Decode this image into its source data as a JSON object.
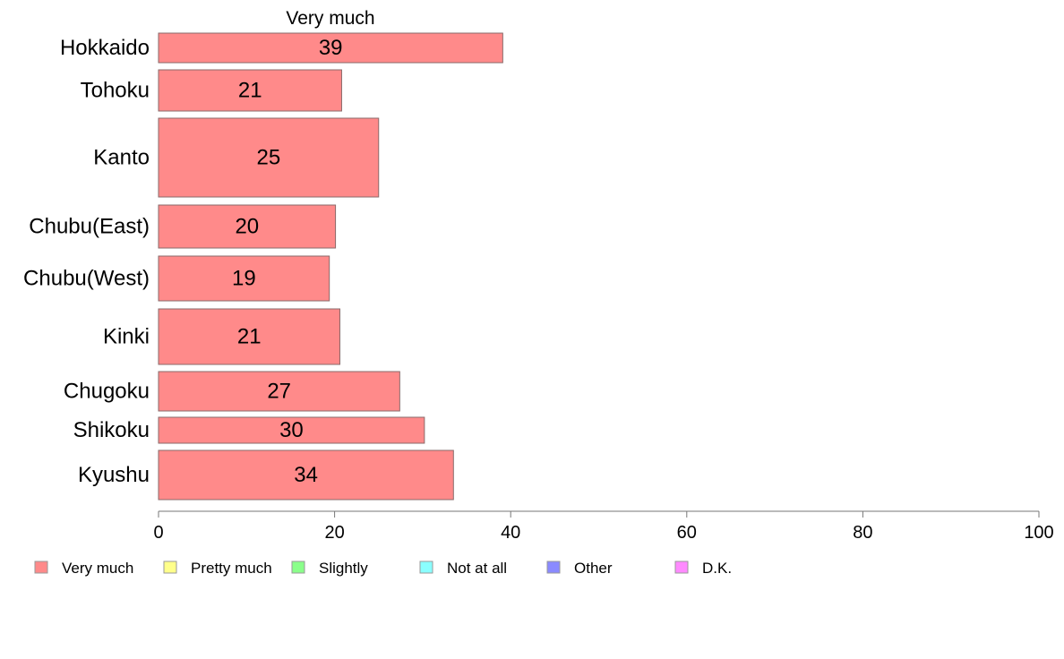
{
  "chart_data": {
    "type": "bar",
    "orientation": "horizontal",
    "title": "Very much",
    "xlim": [
      0,
      100
    ],
    "x_ticks": [
      0,
      20,
      40,
      60,
      80,
      100
    ],
    "grid": false,
    "legend_position": "bottom",
    "categories": [
      "Hokkaido",
      "Tohoku",
      "Kanto",
      "Chubu(East)",
      "Chubu(West)",
      "Kinki",
      "Chugoku",
      "Shikoku",
      "Kyushu"
    ],
    "series": [
      {
        "name": "Very much",
        "color": "#ff8a8a",
        "values": [
          39.1,
          20.8,
          25.0,
          20.1,
          19.4,
          20.6,
          27.4,
          30.2,
          33.5
        ],
        "labels": [
          "39",
          "21",
          "25",
          "20",
          "19",
          "21",
          "27",
          "30",
          "34"
        ]
      }
    ],
    "legend": [
      {
        "label": "Very much",
        "color": "#ff8a8a"
      },
      {
        "label": "Pretty much",
        "color": "#ffff8a"
      },
      {
        "label": "Slightly",
        "color": "#8aff8a"
      },
      {
        "label": "Not at all",
        "color": "#8affff"
      },
      {
        "label": "Other",
        "color": "#8a8aff"
      },
      {
        "label": "D.K.",
        "color": "#ff8aff"
      }
    ]
  }
}
